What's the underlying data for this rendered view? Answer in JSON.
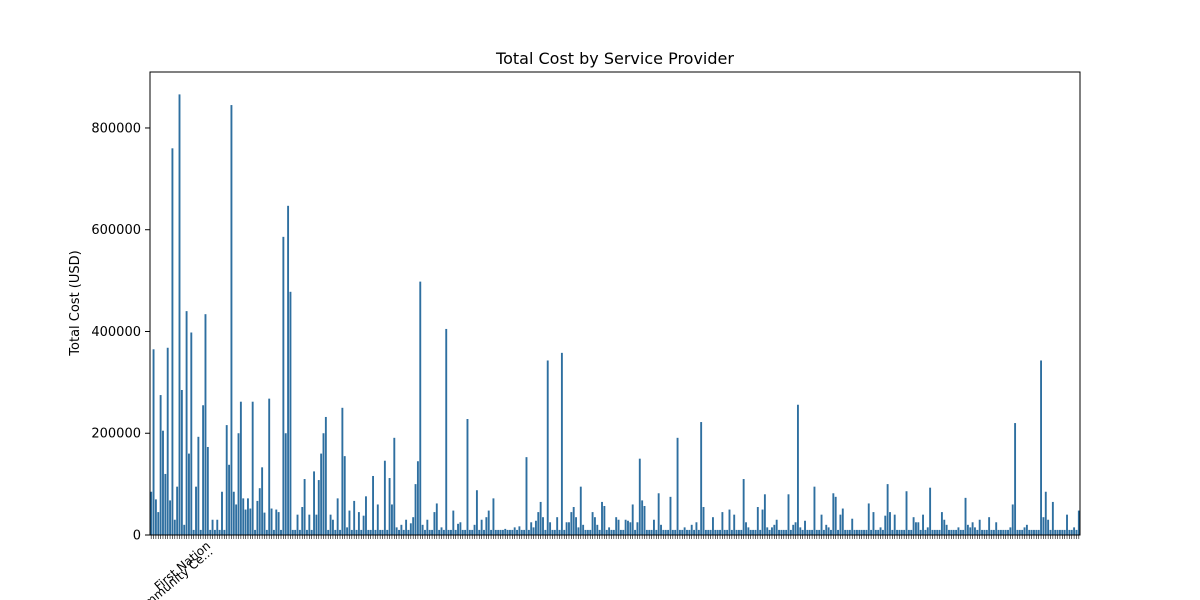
{
  "chart_data": {
    "type": "bar",
    "title": "Total Cost by Service Provider",
    "xlabel": "",
    "ylabel": "Total Cost (USD)",
    "ylim": [
      0,
      910000
    ],
    "yticks": [
      0,
      200000,
      400000,
      600000,
      800000
    ],
    "ytick_labels": [
      "0",
      "200000",
      "400000",
      "600000",
      "800000"
    ],
    "grid": false,
    "legend": "none",
    "bar_color": "#2e6fa0",
    "x_tick_labels_visible": [
      "First Nation",
      "Community Ce..."
    ],
    "values": [
      85000,
      365000,
      70000,
      45000,
      275000,
      205000,
      120000,
      368000,
      68000,
      760000,
      30000,
      95000,
      866000,
      285000,
      20000,
      440000,
      160000,
      398000,
      10000,
      95000,
      193000,
      10000,
      255000,
      434000,
      173000,
      10000,
      30000,
      10000,
      30000,
      10000,
      85000,
      10000,
      216000,
      138000,
      845000,
      85000,
      60000,
      200000,
      262000,
      72000,
      50000,
      72000,
      52000,
      262000,
      10000,
      67000,
      92000,
      133000,
      44000,
      10000,
      268000,
      52000,
      10000,
      50000,
      45000,
      10000,
      586000,
      200000,
      647000,
      478000,
      10000,
      10000,
      40000,
      10000,
      55000,
      110000,
      10000,
      40000,
      10000,
      125000,
      40000,
      108000,
      160000,
      200000,
      232000,
      10000,
      40000,
      30000,
      10000,
      72000,
      10000,
      250000,
      155000,
      15000,
      48000,
      10000,
      67000,
      10000,
      45000,
      10000,
      38000,
      76000,
      10000,
      10000,
      116000,
      10000,
      60000,
      10000,
      10000,
      146000,
      10000,
      112000,
      60000,
      191000,
      15000,
      10000,
      20000,
      10000,
      30000,
      10000,
      23000,
      35000,
      100000,
      145000,
      498000,
      20000,
      10000,
      30000,
      10000,
      10000,
      45000,
      62000,
      10000,
      15000,
      10000,
      405000,
      10000,
      10000,
      48000,
      10000,
      22000,
      25000,
      10000,
      10000,
      228000,
      10000,
      10000,
      20000,
      88000,
      10000,
      30000,
      10000,
      35000,
      48000,
      10000,
      72000,
      10000,
      10000,
      10000,
      10000,
      12000,
      10000,
      10000,
      10000,
      15000,
      10000,
      17000,
      10000,
      10000,
      153000,
      10000,
      25000,
      15000,
      28000,
      45000,
      65000,
      35000,
      10000,
      343000,
      25000,
      10000,
      10000,
      35000,
      10000,
      358000,
      10000,
      25000,
      25000,
      45000,
      55000,
      35000,
      15000,
      95000,
      20000,
      10000,
      10000,
      10000,
      45000,
      35000,
      20000,
      10000,
      65000,
      57000,
      10000,
      15000,
      10000,
      10000,
      35000,
      30000,
      10000,
      10000,
      30000,
      28000,
      25000,
      60000,
      10000,
      25000,
      150000,
      68000,
      57000,
      10000,
      10000,
      10000,
      30000,
      10000,
      82000,
      20000,
      10000,
      10000,
      10000,
      75000,
      10000,
      10000,
      191000,
      10000,
      10000,
      15000,
      10000,
      10000,
      20000,
      10000,
      25000,
      10000,
      222000,
      55000,
      10000,
      10000,
      10000,
      35000,
      10000,
      10000,
      10000,
      45000,
      10000,
      10000,
      50000,
      10000,
      40000,
      10000,
      10000,
      10000,
      110000,
      25000,
      15000,
      10000,
      10000,
      10000,
      55000,
      10000,
      50000,
      80000,
      15000,
      10000,
      15000,
      20000,
      30000,
      10000,
      10000,
      10000,
      10000,
      80000,
      10000,
      20000,
      25000,
      256000,
      15000,
      10000,
      28000,
      10000,
      10000,
      10000,
      95000,
      10000,
      10000,
      40000,
      10000,
      20000,
      15000,
      10000,
      82000,
      75000,
      10000,
      40000,
      52000,
      10000,
      10000,
      10000,
      32000,
      10000,
      10000,
      10000,
      10000,
      10000,
      10000,
      62000,
      10000,
      45000,
      10000,
      10000,
      15000,
      10000,
      38000,
      100000,
      45000,
      10000,
      40000,
      10000,
      10000,
      10000,
      10000,
      86000,
      10000,
      10000,
      35000,
      25000,
      25000,
      10000,
      40000,
      10000,
      15000,
      93000,
      10000,
      10000,
      10000,
      10000,
      45000,
      30000,
      20000,
      10000,
      10000,
      10000,
      10000,
      15000,
      10000,
      10000,
      73000,
      20000,
      15000,
      25000,
      15000,
      10000,
      30000,
      10000,
      10000,
      10000,
      35000,
      10000,
      10000,
      25000,
      10000,
      10000,
      10000,
      10000,
      10000,
      15000,
      60000,
      220000,
      10000,
      10000,
      10000,
      15000,
      20000,
      10000,
      10000,
      10000,
      10000,
      10000,
      343000,
      35000,
      85000,
      30000,
      10000,
      65000,
      10000,
      10000,
      10000,
      10000,
      10000,
      40000,
      10000,
      10000,
      15000,
      10000,
      48000
    ]
  }
}
